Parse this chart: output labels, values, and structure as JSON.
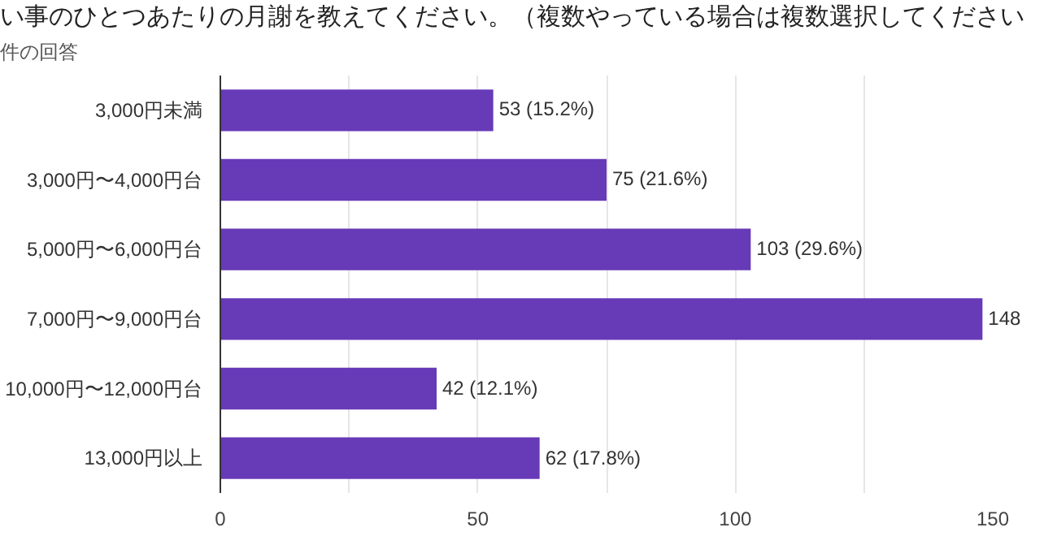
{
  "chart_data": {
    "type": "bar",
    "orientation": "horizontal",
    "title": "い事のひとつあたりの月謝を教えてください。（複数やっている場合は複数選択してください",
    "subtitle": "件の回答",
    "categories": [
      "3,000円未満",
      "3,000円〜4,000円台",
      "5,000円〜6,000円台",
      "7,000円〜9,000円台",
      "10,000円〜12,000円台",
      "13,000円以上"
    ],
    "values": [
      53,
      75,
      103,
      148,
      42,
      62
    ],
    "color": "#673ab7",
    "value_labels": [
      "53 (15.2%)",
      "75 (21.6%)",
      "103 (29.6%)",
      "148",
      "42 (12.1%)",
      "62 (17.8%)"
    ],
    "xlim": [
      0,
      150
    ],
    "xticks": [
      0,
      {
        "value": 25,
        "label": null
      },
      50,
      {
        "value": 75,
        "label": null
      },
      100,
      {
        "value": 125,
        "label": null
      },
      150
    ],
    "grid": "x"
  }
}
